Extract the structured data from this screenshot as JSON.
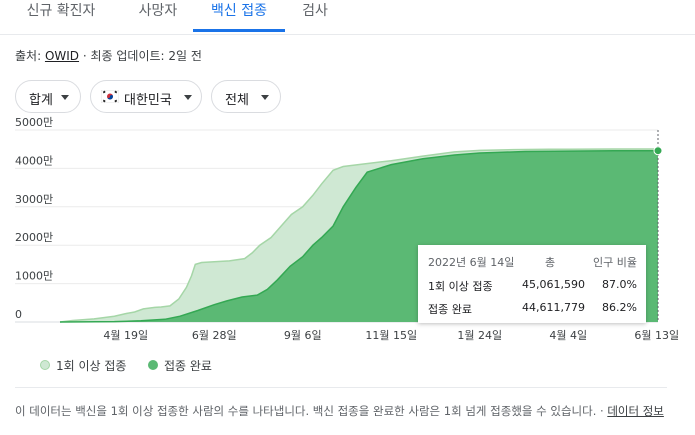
{
  "tabs": [
    {
      "label": "신규 확진자",
      "active": false
    },
    {
      "label": "사망자",
      "active": false
    },
    {
      "label": "백신 접종",
      "active": true
    },
    {
      "label": "검사",
      "active": false
    }
  ],
  "source": {
    "prefix": "출처: ",
    "link": "OWID",
    "suffix": " · 최종 업데이트: 2일 전"
  },
  "filters": {
    "metric": "합계",
    "country": "대한민국",
    "scope": "전체"
  },
  "tooltip": {
    "date": "2022년 6월 14일",
    "total_header": "총",
    "ratio_header": "인구 비율",
    "rows": [
      {
        "label": "1회 이상 접종",
        "total": "45,061,590",
        "ratio": "87.0%"
      },
      {
        "label": "접종 완료",
        "total": "44,611,779",
        "ratio": "86.2%"
      }
    ]
  },
  "legend": {
    "at_least_one": "1회 이상 접종",
    "fully": "접종 완료"
  },
  "note": {
    "text": "이 데이터는 백신을 1회 이상 접종한 사람의 수를 나타냅니다. 백신 접종을 완료한 사람은 1회 넘게 접종했을 수 있습니다. · ",
    "link": "데이터 정보"
  },
  "colors": {
    "accent": "#1a73e8",
    "at_least_one_fill": "#cfe8d3",
    "at_least_one_line": "#a5d6a7",
    "fully_fill": "#5bb974",
    "fully_line": "#34a853"
  },
  "chart_data": {
    "type": "area",
    "y_tick_labels": [
      "0",
      "1000만",
      "2000만",
      "3000만",
      "4000만",
      "5000만"
    ],
    "y_ticks": [
      0,
      10000000,
      20000000,
      30000000,
      40000000,
      50000000
    ],
    "ylim": [
      0,
      50000000
    ],
    "x_tick_labels": [
      "4월 19일",
      "6월 28일",
      "9월 6일",
      "11월 15일",
      "1월 24일",
      "4월 4일",
      "6월 13일"
    ],
    "x_ticks": [
      "2021-04-19",
      "2021-06-28",
      "2021-09-06",
      "2021-11-15",
      "2022-01-24",
      "2022-04-04",
      "2022-06-13"
    ],
    "xlim": [
      "2021-02-26",
      "2022-06-14"
    ],
    "series": [
      {
        "name": "1회 이상 접종",
        "points": [
          [
            "2021-02-26",
            0
          ],
          [
            "2021-03-08",
            400000
          ],
          [
            "2021-03-25",
            800000
          ],
          [
            "2021-04-10",
            1500000
          ],
          [
            "2021-04-19",
            2200000
          ],
          [
            "2021-04-26",
            2600000
          ],
          [
            "2021-05-03",
            3400000
          ],
          [
            "2021-05-12",
            3800000
          ],
          [
            "2021-05-17",
            3900000
          ],
          [
            "2021-05-24",
            4200000
          ],
          [
            "2021-05-31",
            6000000
          ],
          [
            "2021-06-06",
            9000000
          ],
          [
            "2021-06-10",
            12000000
          ],
          [
            "2021-06-13",
            15000000
          ],
          [
            "2021-06-18",
            15500000
          ],
          [
            "2021-06-28",
            15700000
          ],
          [
            "2021-07-10",
            15900000
          ],
          [
            "2021-07-22",
            16500000
          ],
          [
            "2021-07-28",
            18000000
          ],
          [
            "2021-08-03",
            20000000
          ],
          [
            "2021-08-12",
            22000000
          ],
          [
            "2021-08-20",
            25000000
          ],
          [
            "2021-08-28",
            28000000
          ],
          [
            "2021-09-06",
            30000000
          ],
          [
            "2021-09-14",
            33000000
          ],
          [
            "2021-09-21",
            36000000
          ],
          [
            "2021-09-30",
            39500000
          ],
          [
            "2021-10-08",
            40500000
          ],
          [
            "2021-10-20",
            41000000
          ],
          [
            "2021-11-15",
            42000000
          ],
          [
            "2021-12-10",
            43200000
          ],
          [
            "2022-01-04",
            44300000
          ],
          [
            "2022-01-24",
            44700000
          ],
          [
            "2022-02-20",
            44900000
          ],
          [
            "2022-03-20",
            45000000
          ],
          [
            "2022-04-04",
            45000000
          ],
          [
            "2022-05-10",
            45050000
          ],
          [
            "2022-06-14",
            45061590
          ]
        ]
      },
      {
        "name": "접종 완료",
        "points": [
          [
            "2021-02-26",
            0
          ],
          [
            "2021-04-10",
            100000
          ],
          [
            "2021-05-01",
            300000
          ],
          [
            "2021-05-20",
            700000
          ],
          [
            "2021-06-01",
            1500000
          ],
          [
            "2021-06-15",
            3000000
          ],
          [
            "2021-06-28",
            4500000
          ],
          [
            "2021-07-08",
            5500000
          ],
          [
            "2021-07-20",
            6500000
          ],
          [
            "2021-08-01",
            7000000
          ],
          [
            "2021-08-09",
            8500000
          ],
          [
            "2021-08-17",
            11000000
          ],
          [
            "2021-08-27",
            14500000
          ],
          [
            "2021-09-06",
            17000000
          ],
          [
            "2021-09-14",
            20000000
          ],
          [
            "2021-09-21",
            22000000
          ],
          [
            "2021-09-30",
            25000000
          ],
          [
            "2021-10-08",
            30000000
          ],
          [
            "2021-10-18",
            35000000
          ],
          [
            "2021-10-27",
            39000000
          ],
          [
            "2021-11-15",
            41000000
          ],
          [
            "2021-12-10",
            42500000
          ],
          [
            "2022-01-04",
            43500000
          ],
          [
            "2022-01-24",
            44000000
          ],
          [
            "2022-03-01",
            44400000
          ],
          [
            "2022-04-04",
            44500000
          ],
          [
            "2022-05-10",
            44580000
          ],
          [
            "2022-06-14",
            44611779
          ]
        ]
      }
    ]
  }
}
